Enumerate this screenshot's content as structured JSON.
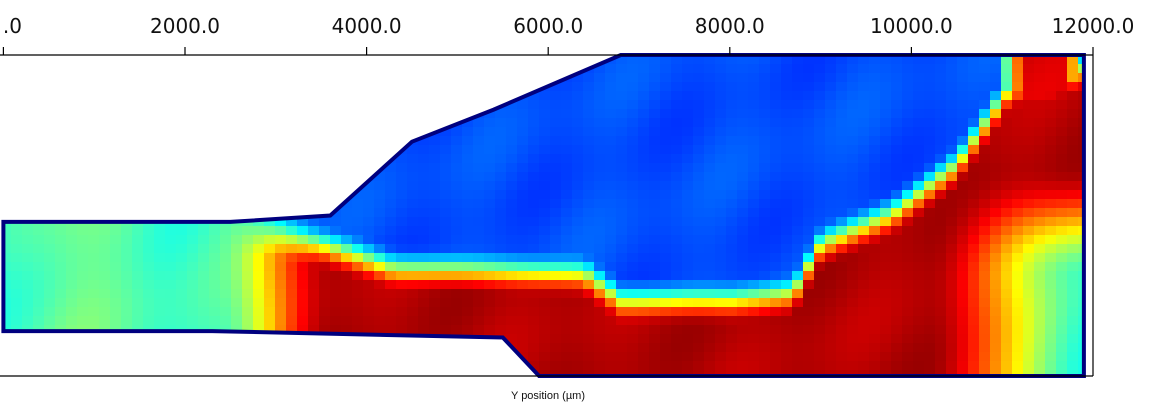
{
  "chart_data": {
    "type": "heatmap",
    "xlabel": "Y position (µm)",
    "ylabel": "",
    "title": "",
    "x_ticks": [
      0.0,
      2000.0,
      4000.0,
      6000.0,
      8000.0,
      10000.0,
      12000.0
    ],
    "x_tick_labels": [
      ".0",
      "2000.0",
      "4000.0",
      "6000.0",
      "8000.0",
      "10000.0",
      "12000.0"
    ],
    "xlim": [
      0,
      12000
    ],
    "colormap": "jet",
    "colormap_stops": [
      "#00007f",
      "#0000ff",
      "#0080ff",
      "#00ffff",
      "#80ff80",
      "#ffff00",
      "#ff8000",
      "#ff0000",
      "#7f0000"
    ],
    "grid": false,
    "domain_outline": [
      [
        0,
        0.52
      ],
      [
        2500,
        0.52
      ],
      [
        3600,
        0.5
      ],
      [
        4500,
        0.27
      ],
      [
        5400,
        0.17
      ],
      [
        6800,
        0.0
      ],
      [
        11900,
        0.0
      ],
      [
        11900,
        1.0
      ],
      [
        5900,
        1.0
      ],
      [
        5500,
        0.88
      ],
      [
        2300,
        0.86
      ],
      [
        0,
        0.86
      ]
    ],
    "notes_regions": {
      "low_field": "upper block from x≈4500 to x≈11000 and left inlet core",
      "high_field": "lower channel from x≈3500 to x≈10500 and right band near x≈11500"
    }
  }
}
